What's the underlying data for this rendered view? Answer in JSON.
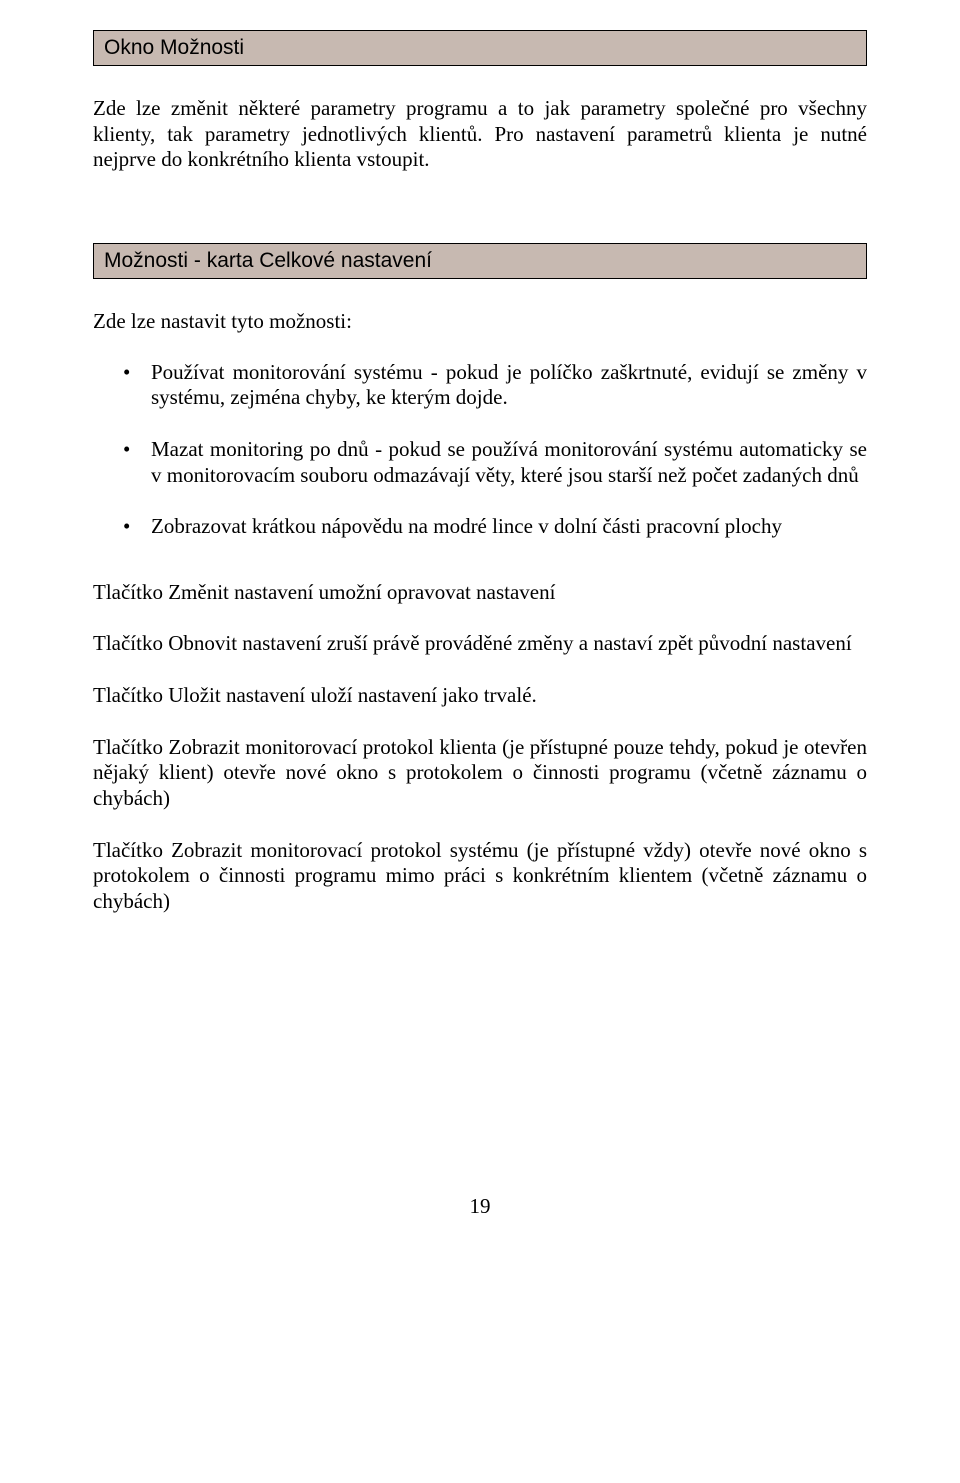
{
  "section1": {
    "title": "Okno Možnosti",
    "intro": "Zde lze změnit některé parametry programu a to jak parametry společné pro všechny klienty, tak parametry jednotlivých klientů. Pro nastavení parametrů klienta je nutné nejprve do konkrétního klienta vstoupit."
  },
  "section2": {
    "title": "Možnosti - karta Celkové nastavení",
    "lead": "Zde lze nastavit tyto možnosti:",
    "bullets": [
      "Používat monitorování systému - pokud je políčko zaškrtnuté, evidují  se změny v systému, zejména chyby, ke kterým dojde.",
      "Mazat monitoring po dnů - pokud se používá monitorování systému automaticky se v monitorovacím souboru odmazávají věty, které jsou starší než počet zadaných dnů",
      "Zobrazovat krátkou nápovědu na modré lince v dolní části pracovní  plochy"
    ],
    "paras": [
      "Tlačítko Změnit nastavení umožní opravovat nastavení",
      "Tlačítko Obnovit nastavení zruší právě prováděné změny a nastaví zpět původní nastavení",
      "Tlačítko Uložit nastavení uloží nastavení jako trvalé.",
      "Tlačítko Zobrazit monitorovací protokol klienta (je přístupné pouze tehdy, pokud je otevřen nějaký klient) otevře nové okno s protokolem o činnosti programu (včetně záznamu o chybách)",
      "Tlačítko Zobrazit monitorovací protokol systému (je přístupné vždy) otevře nové okno s protokolem o činnosti programu mimo práci s konkrétním klientem (včetně záznamu o chybách)"
    ]
  },
  "page_number": "19"
}
